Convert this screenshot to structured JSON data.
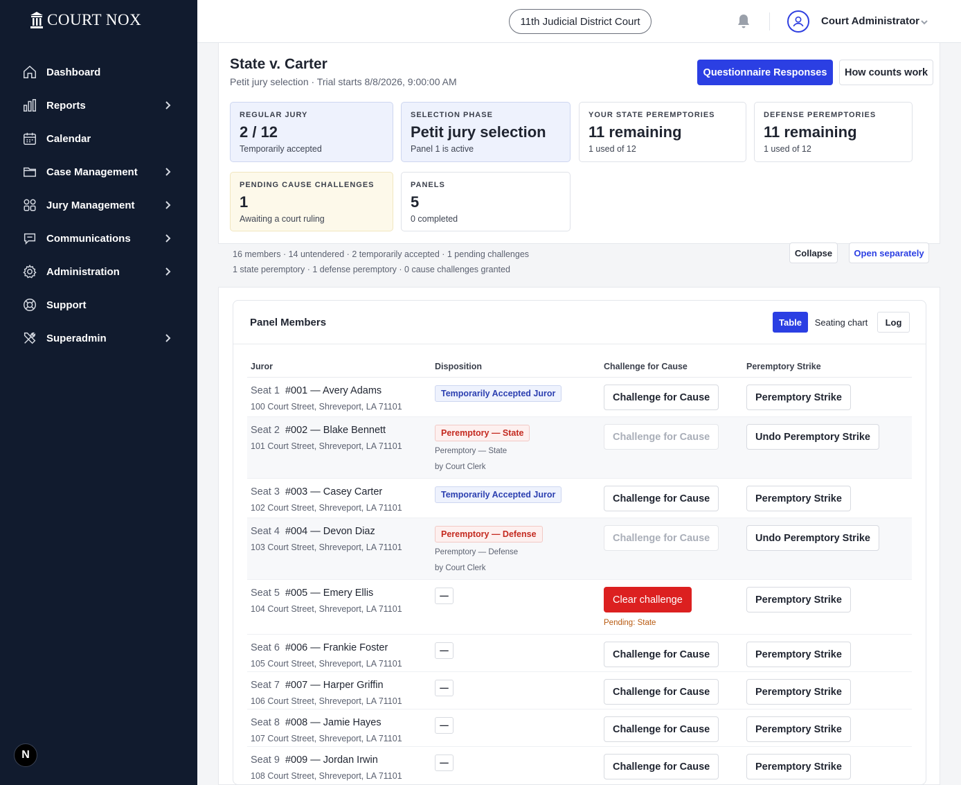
{
  "brand": {
    "name": "COURT NOX"
  },
  "sidebar": {
    "items": [
      {
        "label": "Dashboard",
        "icon": "home-icon",
        "chevron": false
      },
      {
        "label": "Reports",
        "icon": "bar-chart-icon",
        "chevron": true
      },
      {
        "label": "Calendar",
        "icon": "calendar-icon",
        "chevron": false
      },
      {
        "label": "Case Management",
        "icon": "folder-icon",
        "chevron": true
      },
      {
        "label": "Jury Management",
        "icon": "grid-icon",
        "chevron": true
      },
      {
        "label": "Communications",
        "icon": "chat-icon",
        "chevron": true
      },
      {
        "label": "Administration",
        "icon": "gear-icon",
        "chevron": true
      },
      {
        "label": "Support",
        "icon": "lifebuoy-icon",
        "chevron": false
      },
      {
        "label": "Superadmin",
        "icon": "tools-icon",
        "chevron": true
      }
    ],
    "footer_badge": "N"
  },
  "topbar": {
    "court": "11th Judicial District Court",
    "user": "Court Administrator"
  },
  "case": {
    "title": "State v. Carter",
    "subtitle": "Petit jury selection  ·  Trial starts 8/8/2026, 9:00:00 AM",
    "primary_button": "Questionnaire Responses",
    "secondary_button": "How counts work"
  },
  "stats": {
    "regular_jury": {
      "key": "REGULAR JURY",
      "value": "2 / 12",
      "sub": "Temporarily accepted"
    },
    "selection_phase": {
      "key": "SELECTION PHASE",
      "value": "Petit jury selection",
      "sub": "Panel 1 is active"
    },
    "state_peremptories": {
      "key": "YOUR STATE PEREMPTORIES",
      "value": "11 remaining",
      "sub": "1 used of 12"
    },
    "defense_peremptories": {
      "key": "DEFENSE PEREMPTORIES",
      "value": "11 remaining",
      "sub": "1 used of 12"
    },
    "pending_cause": {
      "key": "PENDING CAUSE CHALLENGES",
      "value": "1",
      "sub": "Awaiting a court ruling"
    },
    "panels": {
      "key": "PANELS",
      "value": "5",
      "sub": "0 completed"
    }
  },
  "summary": {
    "line1": "16 members  ·  14 untendered  ·  2 temporarily accepted  ·  1 pending challenges",
    "line2": "1 state peremptory  ·  1 defense peremptory  ·  0 cause challenges granted",
    "collapse": "Collapse",
    "open_separately": "Open separately"
  },
  "panel": {
    "title": "Panel Members",
    "views": {
      "table": "Table",
      "seating": "Seating chart",
      "log": "Log"
    },
    "columns": {
      "juror": "Juror",
      "disposition": "Disposition",
      "cause": "Challenge for Cause",
      "peremptory": "Peremptory Strike"
    },
    "rows": [
      {
        "seat": "Seat 1",
        "name": "#001 — Avery Adams",
        "address": "100 Court Street, Shreveport, LA 71101",
        "disposition": "Temporarily Accepted Juror",
        "disp_type": "blue",
        "note1": "",
        "note2": "",
        "cause": "Challenge for Cause",
        "cause_state": "normal",
        "cause_note": "",
        "peremptory": "Peremptory Strike"
      },
      {
        "seat": "Seat 2",
        "name": "#002 — Blake Bennett",
        "address": "101 Court Street, Shreveport, LA 71101",
        "disposition": "Peremptory — State",
        "disp_type": "red",
        "note1": "Peremptory — State",
        "note2": "by Court Clerk",
        "cause": "Challenge for Cause",
        "cause_state": "disabled",
        "cause_note": "",
        "peremptory": "Undo Peremptory Strike"
      },
      {
        "seat": "Seat 3",
        "name": "#003 — Casey Carter",
        "address": "102 Court Street, Shreveport, LA 71101",
        "disposition": "Temporarily Accepted Juror",
        "disp_type": "blue",
        "note1": "",
        "note2": "",
        "cause": "Challenge for Cause",
        "cause_state": "normal",
        "cause_note": "",
        "peremptory": "Peremptory Strike"
      },
      {
        "seat": "Seat 4",
        "name": "#004 — Devon Diaz",
        "address": "103 Court Street, Shreveport, LA 71101",
        "disposition": "Peremptory — Defense",
        "disp_type": "red",
        "note1": "Peremptory — Defense",
        "note2": "by Court Clerk",
        "cause": "Challenge for Cause",
        "cause_state": "disabled",
        "cause_note": "",
        "peremptory": "Undo Peremptory Strike"
      },
      {
        "seat": "Seat 5",
        "name": "#005 — Emery Ellis",
        "address": "104 Court Street, Shreveport, LA 71101",
        "disposition": "—",
        "disp_type": "dash",
        "note1": "",
        "note2": "",
        "cause": "Clear challenge",
        "cause_state": "red",
        "cause_note": "Pending: State",
        "peremptory": "Peremptory Strike"
      },
      {
        "seat": "Seat 6",
        "name": "#006 — Frankie Foster",
        "address": "105 Court Street, Shreveport, LA 71101",
        "disposition": "—",
        "disp_type": "dash",
        "note1": "",
        "note2": "",
        "cause": "Challenge for Cause",
        "cause_state": "normal",
        "cause_note": "",
        "peremptory": "Peremptory Strike"
      },
      {
        "seat": "Seat 7",
        "name": "#007 — Harper Griffin",
        "address": "106 Court Street, Shreveport, LA 71101",
        "disposition": "—",
        "disp_type": "dash",
        "note1": "",
        "note2": "",
        "cause": "Challenge for Cause",
        "cause_state": "normal",
        "cause_note": "",
        "peremptory": "Peremptory Strike"
      },
      {
        "seat": "Seat 8",
        "name": "#008 — Jamie Hayes",
        "address": "107 Court Street, Shreveport, LA 71101",
        "disposition": "—",
        "disp_type": "dash",
        "note1": "",
        "note2": "",
        "cause": "Challenge for Cause",
        "cause_state": "normal",
        "cause_note": "",
        "peremptory": "Peremptory Strike"
      },
      {
        "seat": "Seat 9",
        "name": "#009 — Jordan Irwin",
        "address": "108 Court Street, Shreveport, LA 71101",
        "disposition": "—",
        "disp_type": "dash",
        "note1": "",
        "note2": "",
        "cause": "Challenge for Cause",
        "cause_state": "normal",
        "cause_note": "",
        "peremptory": "Peremptory Strike"
      }
    ]
  },
  "colors": {
    "sidebar_bg": "#111b2e",
    "accent": "#2b3fe3",
    "danger": "#dc2020"
  }
}
